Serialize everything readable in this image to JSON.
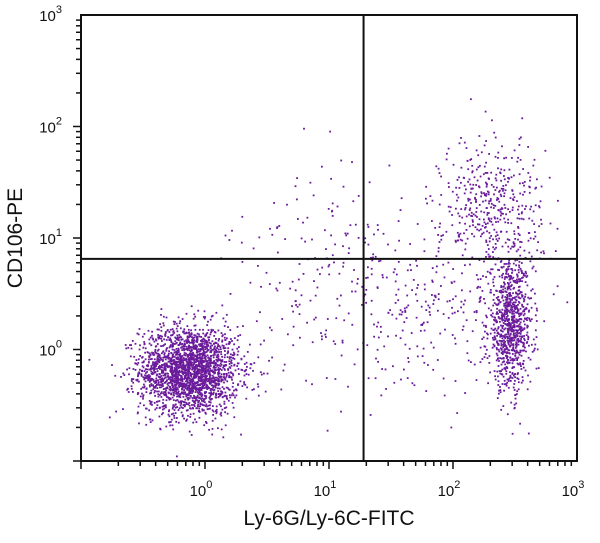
{
  "chart_data": {
    "type": "scatter",
    "xlabel": "Ly-6G/Ly-6C-FITC",
    "ylabel": "CD106-PE",
    "xscale": "log",
    "yscale": "log",
    "xlim": [
      0.1,
      1000
    ],
    "ylim": [
      0.1,
      1000
    ],
    "x_ticks": [
      {
        "value": 1,
        "base": "10",
        "exp": "0"
      },
      {
        "value": 10,
        "base": "10",
        "exp": "1"
      },
      {
        "value": 100,
        "base": "10",
        "exp": "2"
      },
      {
        "value": 1000,
        "base": "10",
        "exp": "3"
      }
    ],
    "y_ticks": [
      {
        "value": 1,
        "base": "10",
        "exp": "0"
      },
      {
        "value": 10,
        "base": "10",
        "exp": "1"
      },
      {
        "value": 100,
        "base": "10",
        "exp": "2"
      },
      {
        "value": 1000,
        "base": "10",
        "exp": "3"
      }
    ],
    "quadrant_gates": {
      "x": 19,
      "y": 6.5
    },
    "grid": false,
    "legend": "none",
    "point_color": "#6a1b9a",
    "populations": [
      {
        "center_x": 0.75,
        "center_y": 0.65,
        "spread_x_log": 0.2,
        "spread_y_log": 0.2,
        "points": 2300
      },
      {
        "center_x": 290,
        "center_y": 1.6,
        "spread_x_log": 0.09,
        "spread_y_log": 0.28,
        "points": 900
      },
      {
        "center_x": 210,
        "center_y": 18,
        "spread_x_log": 0.2,
        "spread_y_log": 0.33,
        "points": 450
      },
      {
        "center_x": 12,
        "center_y": 4,
        "spread_x_log": 0.45,
        "spread_y_log": 0.5,
        "points": 220
      },
      {
        "center_x": 60,
        "center_y": 2,
        "spread_x_log": 0.35,
        "spread_y_log": 0.35,
        "points": 180
      }
    ]
  }
}
